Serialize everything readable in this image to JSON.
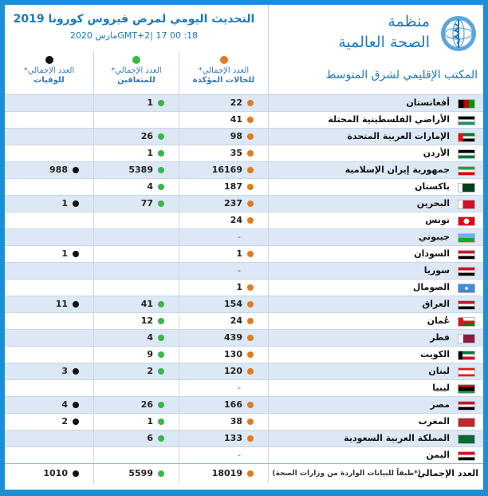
{
  "header": {
    "update_title": "التحديث اليومي لمرض فيروس كورونا 2019",
    "update_date": "18: 00  GMT+2| 17مارس 2020",
    "who_name_line1": "منظمة",
    "who_name_line2": "الصحة العالمية",
    "who_region": "المكتب الإقليمي لشرق المتوسط"
  },
  "columns": {
    "cases": {
      "l1": "العدد الإجمالي*",
      "l2": "للحالات المؤكدة",
      "color": "#e07b22"
    },
    "recovered": {
      "l1": "العدد الإجمالي*",
      "l2": "للمتعافين",
      "color": "#3cb54a"
    },
    "deaths": {
      "l1": "العدد الإجمالي*",
      "l2": "للوفيات",
      "color": "#111111"
    }
  },
  "rows": [
    {
      "country": "أفغانستان",
      "flag": "afghanistan-flag-icon",
      "cases": "22",
      "recovered": "1",
      "deaths": ""
    },
    {
      "country": "الأراضي الفلسطينية المحتلة",
      "flag": "palestine-flag-icon",
      "cases": "41",
      "recovered": "",
      "deaths": ""
    },
    {
      "country": "الإمارات العربية المتحدة",
      "flag": "uae-flag-icon",
      "cases": "98",
      "recovered": "26",
      "deaths": ""
    },
    {
      "country": "الأردن",
      "flag": "jordan-flag-icon",
      "cases": "35",
      "recovered": "1",
      "deaths": ""
    },
    {
      "country": "جمهورية إيران الإسلامية",
      "flag": "iran-flag-icon",
      "cases": "16169",
      "recovered": "5389",
      "deaths": "988"
    },
    {
      "country": "باكستان",
      "flag": "pakistan-flag-icon",
      "cases": "187",
      "recovered": "4",
      "deaths": ""
    },
    {
      "country": "البحرين",
      "flag": "bahrain-flag-icon",
      "cases": "237",
      "recovered": "77",
      "deaths": "1"
    },
    {
      "country": "تونس",
      "flag": "tunisia-flag-icon",
      "cases": "24",
      "recovered": "",
      "deaths": ""
    },
    {
      "country": "جيبوتي",
      "flag": "djibouti-flag-icon",
      "cases": "-",
      "recovered": "",
      "deaths": ""
    },
    {
      "country": "السودان",
      "flag": "sudan-flag-icon",
      "cases": "1",
      "recovered": "",
      "deaths": "1"
    },
    {
      "country": "سوريا",
      "flag": "syria-flag-icon",
      "cases": "-",
      "recovered": "",
      "deaths": ""
    },
    {
      "country": "الصومال",
      "flag": "somalia-flag-icon",
      "cases": "1",
      "recovered": "",
      "deaths": ""
    },
    {
      "country": "العراق",
      "flag": "iraq-flag-icon",
      "cases": "154",
      "recovered": "41",
      "deaths": "11"
    },
    {
      "country": "عُمان",
      "flag": "oman-flag-icon",
      "cases": "24",
      "recovered": "12",
      "deaths": ""
    },
    {
      "country": "قطر",
      "flag": "qatar-flag-icon",
      "cases": "439",
      "recovered": "4",
      "deaths": ""
    },
    {
      "country": "الكويت",
      "flag": "kuwait-flag-icon",
      "cases": "130",
      "recovered": "9",
      "deaths": ""
    },
    {
      "country": "لبنان",
      "flag": "lebanon-flag-icon",
      "cases": "120",
      "recovered": "2",
      "deaths": "3"
    },
    {
      "country": "ليبيا",
      "flag": "libya-flag-icon",
      "cases": "-",
      "recovered": "",
      "deaths": ""
    },
    {
      "country": "مصر",
      "flag": "egypt-flag-icon",
      "cases": "166",
      "recovered": "26",
      "deaths": "4"
    },
    {
      "country": "المغرب",
      "flag": "morocco-flag-icon",
      "cases": "38",
      "recovered": "1",
      "deaths": "2"
    },
    {
      "country": "المملكة العربية السعودية",
      "flag": "saudi-arabia-flag-icon",
      "cases": "133",
      "recovered": "6",
      "deaths": ""
    },
    {
      "country": "اليمن",
      "flag": "yemen-flag-icon",
      "cases": "-",
      "recovered": "",
      "deaths": ""
    }
  ],
  "total": {
    "label": "العدد الإجمالي",
    "note": "(*طبقاً للبيانات الواردة من وزارات الصحة)",
    "cases": "18019",
    "recovered": "5599",
    "deaths": "1010"
  }
}
